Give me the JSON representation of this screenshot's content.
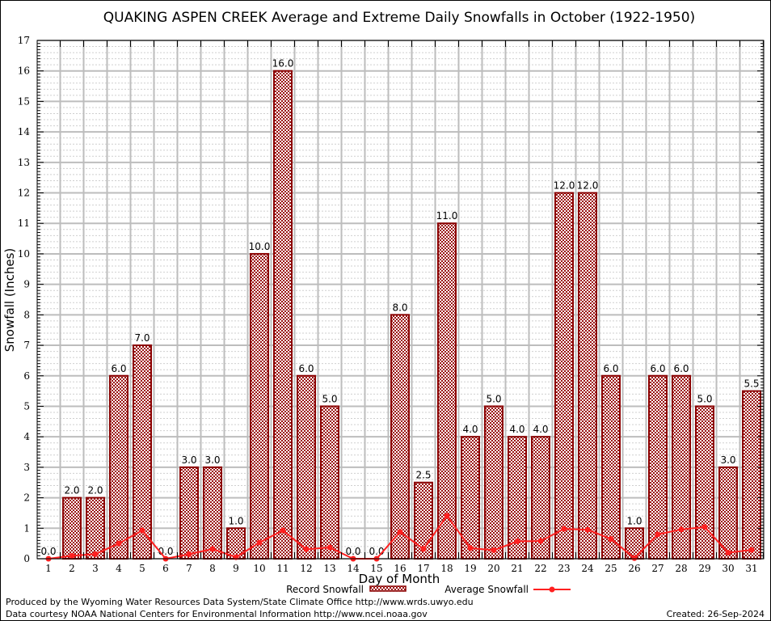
{
  "chart_data": {
    "type": "bar",
    "title": "QUAKING ASPEN CREEK Average and Extreme Daily Snowfalls in October (1922-1950)",
    "xlabel": "Day of Month",
    "ylabel": "Snowfall (Inches)",
    "ylim": [
      0,
      17
    ],
    "yticks": [
      "0",
      "1",
      "2",
      "3",
      "4",
      "5",
      "6",
      "7",
      "8",
      "9",
      "10",
      "11",
      "12",
      "13",
      "14",
      "15",
      "16",
      "17"
    ],
    "grid": true,
    "categories": [
      "1",
      "2",
      "3",
      "4",
      "5",
      "6",
      "7",
      "8",
      "9",
      "10",
      "11",
      "12",
      "13",
      "14",
      "15",
      "16",
      "17",
      "18",
      "19",
      "20",
      "21",
      "22",
      "23",
      "24",
      "25",
      "26",
      "27",
      "28",
      "29",
      "30",
      "31"
    ],
    "series": [
      {
        "name": "Record Snowfall",
        "type": "bar",
        "color": "#8b0000",
        "values": [
          0.0,
          2.0,
          2.0,
          6.0,
          7.0,
          0.0,
          3.0,
          3.0,
          1.0,
          10.0,
          16.0,
          6.0,
          5.0,
          0.0,
          0.0,
          8.0,
          2.5,
          11.0,
          4.0,
          5.0,
          4.0,
          4.0,
          12.0,
          12.0,
          6.0,
          1.0,
          6.0,
          6.0,
          5.0,
          3.0,
          5.5
        ],
        "labels": [
          "0.0",
          "2.0",
          "2.0",
          "6.0",
          "7.0",
          "0.0",
          "3.0",
          "3.0",
          "1.0",
          "10.0",
          "16.0",
          "6.0",
          "5.0",
          "0.0",
          "0.0",
          "8.0",
          "2.5",
          "11.0",
          "4.0",
          "5.0",
          "4.0",
          "4.0",
          "12.0",
          "12.0",
          "6.0",
          "1.0",
          "6.0",
          "6.0",
          "5.0",
          "3.0",
          "5.5"
        ]
      },
      {
        "name": "Average Snowfall",
        "type": "line",
        "color": "#ff2020",
        "values": [
          0.0,
          0.1,
          0.15,
          0.5,
          0.93,
          0.0,
          0.15,
          0.32,
          0.05,
          0.53,
          0.93,
          0.31,
          0.37,
          0.0,
          0.0,
          0.88,
          0.32,
          1.41,
          0.35,
          0.28,
          0.57,
          0.58,
          0.98,
          0.95,
          0.65,
          0.02,
          0.8,
          0.96,
          1.04,
          0.2,
          0.29
        ]
      }
    ],
    "legend": {
      "placement": "bottom-center"
    }
  },
  "footer": {
    "line1": "Produced by the Wyoming Water Resources Data System/State Climate Office http://www.wrds.uwyo.edu",
    "line2": "Data courtesy NOAA National Centers for Environmental Information http://www.ncei.noaa.gov",
    "created": "Created: 26-Sep-2024"
  }
}
